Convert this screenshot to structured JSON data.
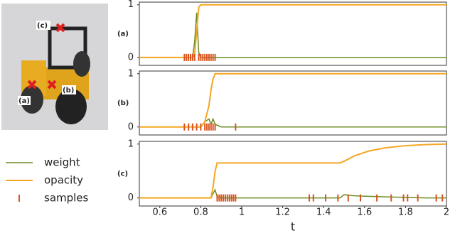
{
  "image": {
    "labels": [
      "(a)",
      "(b)",
      "(c)"
    ]
  },
  "chart_data": [
    {
      "type": "line",
      "label": "(a)",
      "xlim": [
        0.5,
        2.0
      ],
      "ylim": [
        -0.15,
        1.05
      ],
      "yticks": [
        0,
        1
      ],
      "x": [
        0.5,
        0.76,
        0.77,
        0.78,
        0.79,
        0.8,
        0.82,
        2.0
      ],
      "series": [
        {
          "name": "weight",
          "color": "#6b8e23",
          "values": [
            0,
            0,
            0.3,
            0.85,
            0.1,
            0,
            0,
            0
          ]
        },
        {
          "name": "opacity",
          "color": "#f5a623",
          "values": [
            0,
            0,
            0.05,
            0.5,
            0.95,
            1,
            1,
            1
          ]
        },
        {
          "name": "samples",
          "color": "#d9541e",
          "x": [
            0.72,
            0.73,
            0.74,
            0.75,
            0.76,
            0.77,
            0.79,
            0.8,
            0.81,
            0.82,
            0.83,
            0.84,
            0.85,
            0.86,
            0.87
          ],
          "values": [
            0,
            0,
            0,
            0,
            0,
            0,
            0,
            0,
            0,
            0,
            0,
            0,
            0,
            0,
            0
          ]
        }
      ]
    },
    {
      "type": "line",
      "label": "(b)",
      "xlim": [
        0.5,
        2.0
      ],
      "ylim": [
        -0.15,
        1.05
      ],
      "yticks": [
        0,
        1
      ],
      "x": [
        0.5,
        0.8,
        0.82,
        0.84,
        0.85,
        0.86,
        0.87,
        0.9,
        2.0
      ],
      "series": [
        {
          "name": "weight",
          "color": "#6b8e23",
          "values": [
            0,
            0,
            0.1,
            0.15,
            0.05,
            0.15,
            0.05,
            0,
            0
          ]
        },
        {
          "name": "opacity",
          "color": "#f5a623",
          "values": [
            0,
            0,
            0.1,
            0.4,
            0.7,
            0.9,
            1,
            1,
            1
          ]
        },
        {
          "name": "samples",
          "color": "#d9541e",
          "x": [
            0.72,
            0.74,
            0.76,
            0.78,
            0.8,
            0.82,
            0.83,
            0.84,
            0.85,
            0.86,
            0.87,
            0.97
          ],
          "values": [
            0,
            0,
            0,
            0,
            0,
            0,
            0,
            0,
            0,
            0,
            0,
            0
          ]
        }
      ]
    },
    {
      "type": "line",
      "label": "(c)",
      "xlim": [
        0.5,
        2.0
      ],
      "ylim": [
        -0.15,
        1.05
      ],
      "yticks": [
        0,
        1
      ],
      "xticks": [
        0.6,
        0.8,
        1.0,
        1.2,
        1.4,
        1.6,
        1.8,
        2.0
      ],
      "xlabel": "t",
      "x": [
        0.5,
        0.85,
        0.86,
        0.87,
        0.88,
        0.9,
        1.48,
        1.5,
        1.55,
        1.62,
        1.7,
        1.8,
        1.9,
        2.0
      ],
      "series": [
        {
          "name": "weight",
          "color": "#6b8e23",
          "values": [
            0,
            0,
            0.08,
            0.15,
            0.02,
            0,
            0,
            0.06,
            0.04,
            0.03,
            0.02,
            0.01,
            0,
            0
          ]
        },
        {
          "name": "opacity",
          "color": "#f5a623",
          "values": [
            0,
            0,
            0.2,
            0.5,
            0.65,
            0.65,
            0.65,
            0.68,
            0.78,
            0.87,
            0.93,
            0.97,
            0.99,
            1
          ]
        },
        {
          "name": "samples",
          "color": "#d9541e",
          "x": [
            0.88,
            0.89,
            0.9,
            0.91,
            0.92,
            0.93,
            0.94,
            0.95,
            0.96,
            0.97,
            1.33,
            1.35,
            1.41,
            1.47,
            1.52,
            1.58,
            1.66,
            1.73,
            1.79,
            1.81,
            1.86,
            1.95,
            1.98
          ],
          "values": [
            0,
            0,
            0,
            0,
            0,
            0,
            0,
            0,
            0,
            0,
            0,
            0,
            0,
            0,
            0,
            0,
            0,
            0,
            0,
            0,
            0,
            0,
            0
          ]
        }
      ]
    }
  ]
}
